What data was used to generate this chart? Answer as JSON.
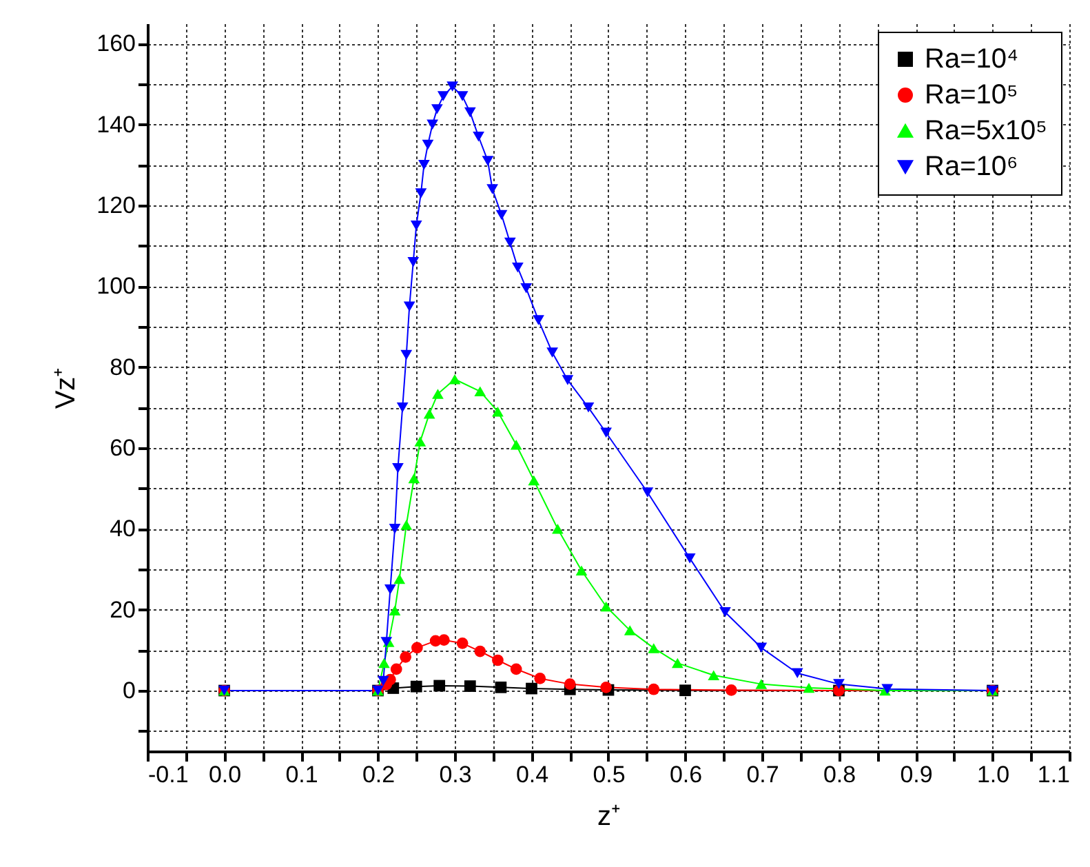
{
  "chart_data": {
    "type": "line",
    "xlabel": "z⁺",
    "ylabel": "Vz⁺",
    "xlim": [
      -0.1,
      1.1
    ],
    "xticks": [
      -0.1,
      {
        "value": -0.05,
        "label": null
      },
      {
        "value": 0,
        "label": "0.0"
      },
      {
        "value": 0.05,
        "label": null
      },
      0.1,
      {
        "value": 0.15,
        "label": null
      },
      0.2,
      {
        "value": 0.25,
        "label": null
      },
      0.3,
      {
        "value": 0.35,
        "label": null
      },
      0.4,
      {
        "value": 0.45,
        "label": null
      },
      0.5,
      {
        "value": 0.55,
        "label": null
      },
      0.6,
      {
        "value": 0.65,
        "label": null
      },
      0.7,
      {
        "value": 0.75,
        "label": null
      },
      0.8,
      {
        "value": 0.85,
        "label": null
      },
      0.9,
      {
        "value": 0.95,
        "label": null
      },
      {
        "value": 1,
        "label": "1.0"
      },
      {
        "value": 1.05,
        "label": null
      },
      1.1
    ],
    "ylim": [
      -15,
      165
    ],
    "yticks": [
      {
        "value": -10,
        "label": null
      },
      0,
      {
        "value": 10,
        "label": null
      },
      20,
      {
        "value": 30,
        "label": null
      },
      40,
      {
        "value": 50,
        "label": null
      },
      60,
      {
        "value": 70,
        "label": null
      },
      80,
      {
        "value": 90,
        "label": null
      },
      100,
      {
        "value": 110,
        "label": null
      },
      120,
      {
        "value": 130,
        "label": null
      },
      140,
      {
        "value": 150,
        "label": null
      },
      160
    ],
    "grid": true,
    "legend": "top right",
    "line_style": "solid",
    "series": [
      {
        "name": "Ra=10⁴",
        "color": "#000000",
        "marker": "square",
        "x": [
          0,
          0.2,
          0.22,
          0.25,
          0.28,
          0.32,
          0.36,
          0.4,
          0.45,
          0.5,
          0.6,
          0.8,
          1.0
        ],
        "values": [
          0,
          0,
          0.6,
          1.0,
          1.2,
          1.1,
          0.8,
          0.5,
          0.3,
          0.15,
          0.05,
          0,
          0
        ]
      },
      {
        "name": "Ra=10⁵",
        "color": "#ff0000",
        "marker": "circle",
        "x": [
          0,
          0.2,
          0.211,
          0.216,
          0.224,
          0.236,
          0.251,
          0.275,
          0.286,
          0.31,
          0.333,
          0.356,
          0.38,
          0.411,
          0.45,
          0.497,
          0.559,
          0.66,
          0.8,
          1.0
        ],
        "values": [
          0,
          0,
          1.5,
          2.7,
          5.3,
          8.3,
          10.6,
          12.3,
          12.5,
          11.7,
          9.7,
          7.5,
          5.3,
          3.0,
          1.6,
          0.8,
          0.3,
          0.1,
          0,
          0
        ]
      },
      {
        "name": "Ra=5x10⁵",
        "color": "#00ff00",
        "marker": "triangle",
        "x": [
          0,
          0.2,
          0.208,
          0.214,
          0.222,
          0.228,
          0.237,
          0.247,
          0.255,
          0.267,
          0.278,
          0.3,
          0.333,
          0.356,
          0.38,
          0.403,
          0.434,
          0.465,
          0.497,
          0.528,
          0.559,
          0.59,
          0.637,
          0.699,
          0.761,
          0.86,
          1.0
        ],
        "values": [
          0,
          0,
          6.8,
          12,
          19.8,
          27.6,
          41,
          52.5,
          61.6,
          68.5,
          73.4,
          77,
          74,
          69,
          60.8,
          52,
          40,
          29.7,
          20.8,
          14.9,
          10.5,
          6.8,
          3.8,
          1.6,
          0.7,
          0,
          0
        ]
      },
      {
        "name": "Ra=10⁶",
        "color": "#0000ff",
        "marker": "triangle-down",
        "x": [
          0,
          0.2,
          0.207,
          0.211,
          0.216,
          0.222,
          0.226,
          0.232,
          0.237,
          0.241,
          0.246,
          0.25,
          0.256,
          0.26,
          0.265,
          0.271,
          0.277,
          0.285,
          0.297,
          0.31,
          0.32,
          0.331,
          0.343,
          0.349,
          0.361,
          0.372,
          0.382,
          0.393,
          0.409,
          0.427,
          0.447,
          0.474,
          0.497,
          0.551,
          0.606,
          0.652,
          0.699,
          0.746,
          0.8,
          0.863,
          1.0
        ],
        "values": [
          0,
          0,
          2.4,
          12,
          25,
          40,
          55,
          70,
          83,
          95,
          106,
          115,
          123,
          130,
          135,
          140,
          143.8,
          147,
          149.4,
          147,
          143,
          137,
          131,
          124,
          117.6,
          110.8,
          104.6,
          99.5,
          91.6,
          83.6,
          76.8,
          70,
          63.8,
          49,
          32.7,
          19.4,
          10.6,
          4.3,
          1.6,
          0.4,
          0
        ]
      }
    ]
  }
}
